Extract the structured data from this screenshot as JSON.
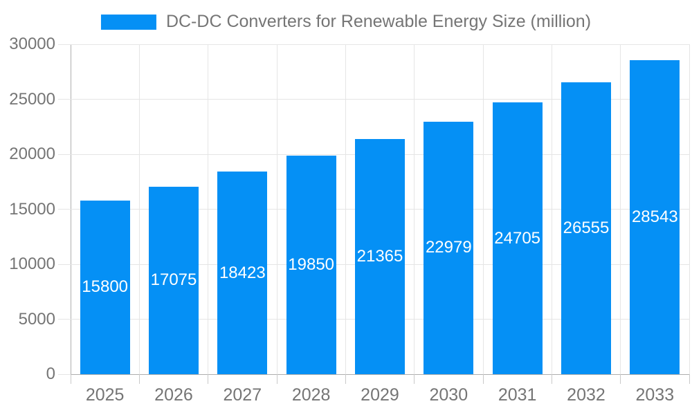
{
  "colors": {
    "bar": "#0590F5",
    "grid": "#E5E5E5",
    "axis_line": "#ADADAD",
    "tick": "#C9C9C9",
    "text": "#757575",
    "value_text": "#FFFFFF",
    "background": "#FFFFFF"
  },
  "chart_data": {
    "type": "bar",
    "title": "DC-DC Converters for Renewable Energy Size (million)",
    "categories": [
      "2025",
      "2026",
      "2027",
      "2028",
      "2029",
      "2030",
      "2031",
      "2032",
      "2033"
    ],
    "values": [
      15800,
      17075,
      18423,
      19850,
      21365,
      22979,
      24705,
      26555,
      28543
    ],
    "value_labels": [
      "15800",
      "17075",
      "18423",
      "19850",
      "21365",
      "22979",
      "24705",
      "26555",
      "28543"
    ],
    "xlabel": "",
    "ylabel": "",
    "ylim": [
      0,
      30000
    ],
    "ytick_interval": 5000,
    "ytick_labels": [
      "0",
      "5000",
      "10000",
      "15000",
      "20000",
      "25000",
      "30000"
    ],
    "grid": true,
    "legend_position": "top"
  }
}
